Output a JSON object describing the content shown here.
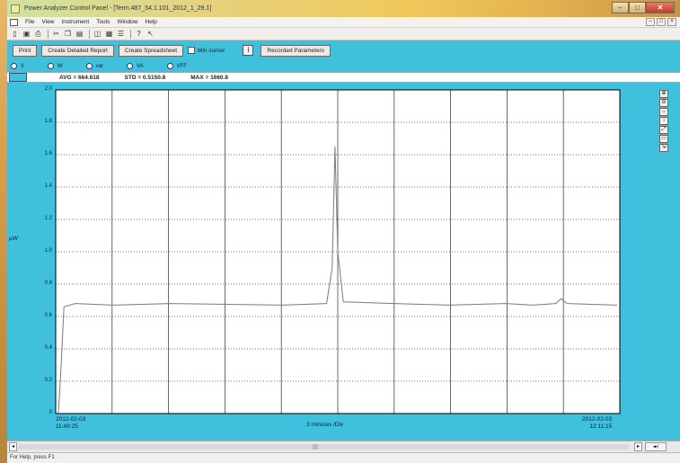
{
  "window": {
    "title": "Power Analyzer Control Panel - [Term.487_54.1.101_2012_1_29.1]",
    "caption_buttons": [
      "–",
      "□",
      "✕"
    ]
  },
  "menu": {
    "items": [
      "File",
      "View",
      "Instrument",
      "Tools",
      "Window",
      "Help"
    ],
    "mdi_buttons": [
      "–",
      "□",
      "×"
    ]
  },
  "toolbar": {
    "icons": [
      "new-icon",
      "save-icon",
      "print-icon",
      "cut-icon",
      "copy-icon",
      "paste-icon",
      "chart-icon",
      "table-icon",
      "settings-icon",
      "help-icon",
      "context-help-icon"
    ]
  },
  "actions": {
    "print": "Print",
    "detailed_report": "Create Detailed Report",
    "spreadsheet": "Create Spreadsheet",
    "min_cursor": "Min cursor",
    "info": "i",
    "recorded_params": "Recorded Parameters"
  },
  "channels": [
    "V",
    "W",
    "var",
    "VA",
    "VFF"
  ],
  "stats": {
    "avg": "AVG = 664.618",
    "std": "STD = 0.5150.8",
    "max": "MAX = 1660.8"
  },
  "right_tools": [
    "⊕",
    "⊖",
    "↔",
    "↕",
    "⤢",
    "▭",
    "⇲"
  ],
  "chart_data": {
    "type": "line",
    "ylabel": "μW",
    "ylim": [
      0,
      2
    ],
    "yticks": [
      "2.0",
      "1.8",
      "1.6",
      "1.4",
      "1.2",
      "1.0",
      "0.8",
      "0.6",
      "0.4",
      "0.2",
      "0"
    ],
    "x_start_label": "2012-02-03\n11:49:25",
    "x_mid_label": "3 minutes /Div",
    "x_end_label": "2012-02-03\n12:11:15",
    "x": [
      0,
      0.5,
      1,
      3,
      10,
      20,
      40,
      48,
      49,
      49.5,
      50,
      51,
      60,
      70,
      80,
      85,
      89,
      90,
      91,
      100
    ],
    "values": [
      0,
      0.3,
      0.66,
      0.68,
      0.67,
      0.68,
      0.67,
      0.68,
      0.9,
      1.65,
      1.0,
      0.69,
      0.68,
      0.67,
      0.68,
      0.67,
      0.68,
      0.71,
      0.68,
      0.67
    ],
    "grid": true,
    "color": "#7a7a7a"
  },
  "status": {
    "text": "For Help, press F1"
  }
}
